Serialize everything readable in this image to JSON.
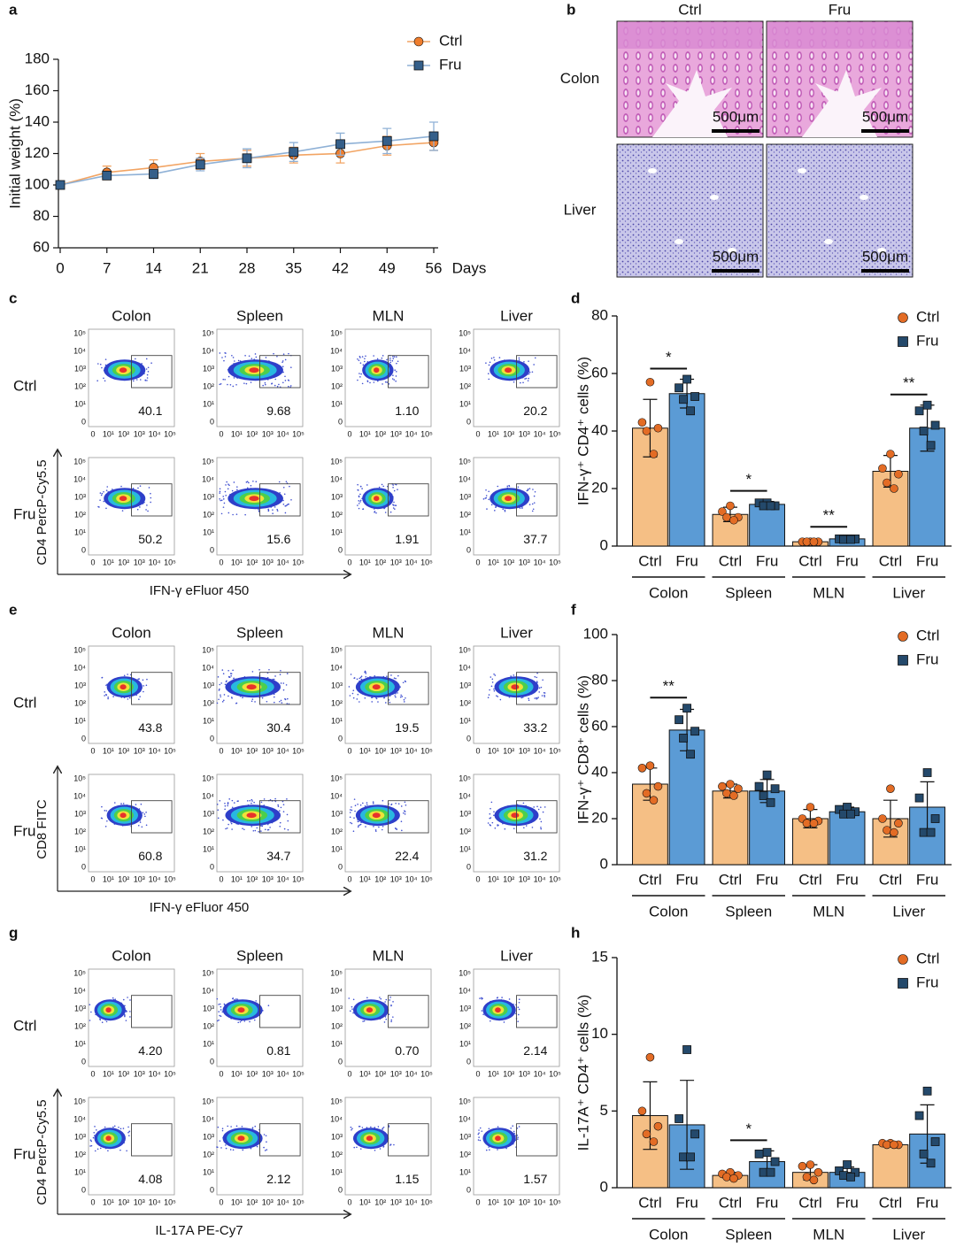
{
  "chart_data": [
    {
      "panel": "a",
      "type": "line",
      "y_label": "Initial weight (%)",
      "x_label": "Days",
      "x": [
        0,
        7,
        14,
        21,
        28,
        35,
        42,
        49,
        56
      ],
      "xlim": [
        0,
        56
      ],
      "xticks": [
        0,
        7,
        14,
        21,
        28,
        35,
        42,
        49,
        56
      ],
      "ylim": [
        60,
        180
      ],
      "yticks": [
        60,
        80,
        100,
        120,
        140,
        160,
        180
      ],
      "legend": "top-right",
      "series": [
        {
          "name": "Ctrl",
          "color": "#ef7d2d",
          "line_color": "#f2a463",
          "marker": "circle",
          "values": [
            100,
            108,
            111,
            115,
            117,
            119,
            120,
            125,
            127
          ],
          "errors": [
            1,
            4,
            5,
            5,
            5,
            5,
            6,
            6,
            5
          ]
        },
        {
          "name": "Fru",
          "color": "#345f8a",
          "line_color": "#8fb1d6",
          "marker": "square",
          "values": [
            100,
            106,
            107,
            113,
            117,
            121,
            126,
            128,
            131
          ],
          "errors": [
            1,
            2,
            3,
            4,
            6,
            6,
            7,
            8,
            9
          ]
        }
      ]
    },
    {
      "panel": "d",
      "type": "bar",
      "y_label": "IFN-γ⁺ CD4⁺ cells (%)",
      "groups": [
        "Colon",
        "Spleen",
        "MLN",
        "Liver"
      ],
      "ylim": [
        0,
        80
      ],
      "yticks": [
        0,
        20,
        40,
        60,
        80
      ],
      "legend": "top-right",
      "series": [
        {
          "name": "Ctrl",
          "color": "#f5bf85",
          "point_color": "#e36c25",
          "marker": "circle",
          "values": [
            41,
            11,
            1.5,
            26
          ],
          "errors": [
            10,
            2.5,
            0.3,
            5.5
          ],
          "points": [
            [
              57,
              43,
              41,
              40,
              32
            ],
            [
              14,
              12,
              10,
              10,
              9
            ],
            [
              1.5,
              1.5,
              1.5,
              1.5,
              1.5
            ],
            [
              32,
              27,
              25,
              22,
              20
            ]
          ]
        },
        {
          "name": "Fru",
          "color": "#5b9bd5",
          "point_color": "#24496b",
          "marker": "square",
          "values": [
            53,
            14.5,
            2.5,
            41
          ],
          "errors": [
            5,
            1,
            0.5,
            8
          ],
          "points": [
            [
              58,
              55,
              52,
              51,
              47
            ],
            [
              15,
              15,
              14,
              14,
              14
            ],
            [
              2.5,
              2.5,
              2.5,
              2.3,
              2.3
            ],
            [
              49,
              47,
              42,
              40,
              35
            ]
          ]
        }
      ],
      "significance": [
        "*",
        "*",
        "**",
        "**"
      ]
    },
    {
      "panel": "f",
      "type": "bar",
      "y_label": "IFN-γ⁺ CD8⁺ cells (%)",
      "groups": [
        "Colon",
        "Spleen",
        "MLN",
        "Liver"
      ],
      "ylim": [
        0,
        100
      ],
      "yticks": [
        0,
        20,
        40,
        60,
        80,
        100
      ],
      "legend": "top-right",
      "series": [
        {
          "name": "Ctrl",
          "color": "#f5bf85",
          "point_color": "#e36c25",
          "marker": "circle",
          "values": [
            35,
            32,
            20,
            20
          ],
          "errors": [
            7,
            3,
            4,
            8
          ],
          "points": [
            [
              43,
              42,
              34,
              31,
              28
            ],
            [
              35,
              34,
              33,
              31,
              30
            ],
            [
              25,
              20,
              19,
              18,
              18
            ],
            [
              33,
              20,
              18,
              15,
              14
            ]
          ]
        },
        {
          "name": "Fru",
          "color": "#5b9bd5",
          "point_color": "#24496b",
          "marker": "square",
          "values": [
            58.5,
            32,
            23,
            25
          ],
          "errors": [
            9,
            5,
            2,
            11
          ],
          "points": [
            [
              68,
              63,
              58,
              55,
              48
            ],
            [
              39,
              34,
              33,
              30,
              27
            ],
            [
              25,
              24,
              23,
              22,
              22
            ],
            [
              40,
              29,
              20,
              14,
              14
            ]
          ]
        }
      ],
      "significance": [
        "**",
        null,
        null,
        null
      ]
    },
    {
      "panel": "h",
      "type": "bar",
      "y_label": "IL-17A⁺ CD4⁺ cells (%)",
      "groups": [
        "Colon",
        "Spleen",
        "MLN",
        "Liver"
      ],
      "ylim": [
        0,
        15
      ],
      "yticks": [
        0,
        5,
        10,
        15
      ],
      "legend": "top-right",
      "series": [
        {
          "name": "Ctrl",
          "color": "#f5bf85",
          "point_color": "#e36c25",
          "marker": "circle",
          "values": [
            4.7,
            0.8,
            1.0,
            2.8
          ],
          "errors": [
            2.2,
            0.2,
            0.5,
            0.1
          ],
          "points": [
            [
              8.5,
              5,
              4,
              3.5,
              3
            ],
            [
              1,
              0.9,
              0.8,
              0.7,
              0.6
            ],
            [
              1.5,
              1.4,
              1,
              0.7,
              0.5
            ],
            [
              2.9,
              2.9,
              2.8,
              2.8,
              2.8
            ]
          ]
        },
        {
          "name": "Fru",
          "color": "#5b9bd5",
          "point_color": "#24496b",
          "marker": "square",
          "values": [
            4.1,
            1.7,
            1.0,
            3.5
          ],
          "errors": [
            2.9,
            0.7,
            0.35,
            1.9
          ],
          "points": [
            [
              9,
              4.5,
              3.5,
              2,
              2
            ],
            [
              2.3,
              2.2,
              1.7,
              1,
              1
            ],
            [
              1.5,
              1.1,
              1,
              0.8,
              0.7
            ],
            [
              6.3,
              4.7,
              3,
              2.2,
              1.6
            ]
          ]
        }
      ],
      "significance": [
        null,
        "*",
        null,
        null
      ]
    }
  ],
  "histology": {
    "panel": "b",
    "columns": [
      "Ctrl",
      "Fru"
    ],
    "rows": [
      "Colon",
      "Liver"
    ],
    "scale_bar": "500μm"
  },
  "flow_panels": [
    {
      "panel": "c",
      "columns": [
        "Colon",
        "Spleen",
        "MLN",
        "Liver"
      ],
      "rows": [
        "Ctrl",
        "Fru"
      ],
      "y_label": "CD4 PercP-Cy5.5",
      "x_label": "IFN-γ eFluor 450",
      "tick_labels": [
        "0",
        "10¹",
        "10²",
        "10³",
        "10⁴",
        "10⁵"
      ],
      "gates": [
        [
          "40.1",
          "9.68",
          "1.10",
          "20.2"
        ],
        [
          "50.2",
          "15.6",
          "1.91",
          "37.7"
        ]
      ]
    },
    {
      "panel": "e",
      "columns": [
        "Colon",
        "Spleen",
        "MLN",
        "Liver"
      ],
      "rows": [
        "Ctrl",
        "Fru"
      ],
      "y_label": "CD8 FITC",
      "x_label": "IFN-γ eFluor 450",
      "tick_labels": [
        "0",
        "10¹",
        "10²",
        "10³",
        "10⁴",
        "10⁵"
      ],
      "gates": [
        [
          "43.8",
          "30.4",
          "19.5",
          "33.2"
        ],
        [
          "60.8",
          "34.7",
          "22.4",
          "31.2"
        ]
      ]
    },
    {
      "panel": "g",
      "columns": [
        "Colon",
        "Spleen",
        "MLN",
        "Liver"
      ],
      "rows": [
        "Ctrl",
        "Fru"
      ],
      "y_label": "CD4 PercP-Cy5.5",
      "x_label": "IL-17A PE-Cy7",
      "tick_labels": [
        "0",
        "10¹",
        "10²",
        "10³",
        "10⁴",
        "10⁵"
      ],
      "gates": [
        [
          "4.20",
          "0.81",
          "0.70",
          "2.14"
        ],
        [
          "4.08",
          "2.12",
          "1.15",
          "1.57"
        ]
      ]
    }
  ]
}
